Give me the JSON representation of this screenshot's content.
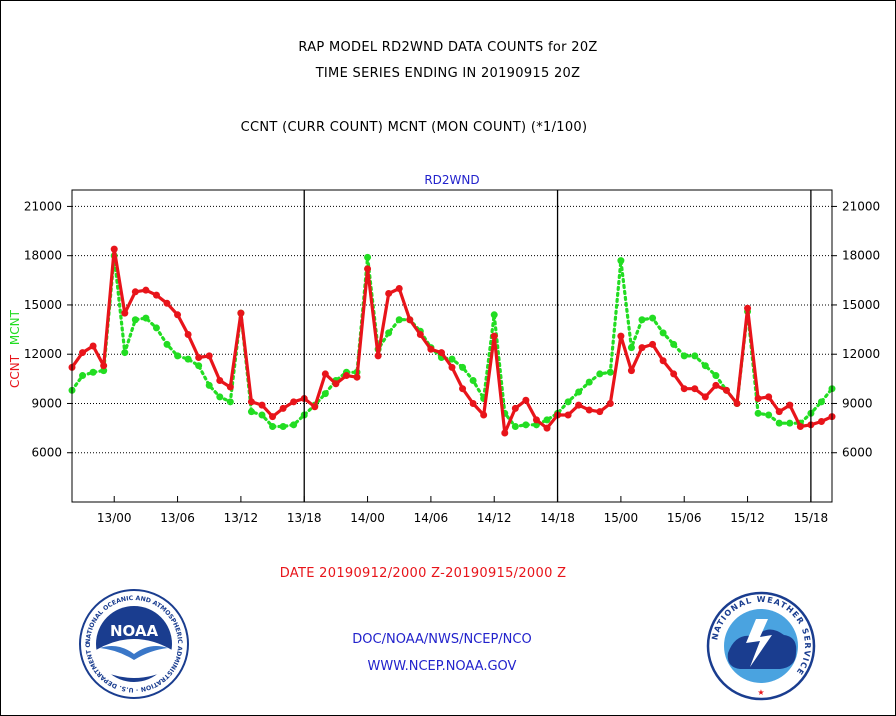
{
  "header": {
    "title_line1": "RAP MODEL RD2WND DATA COUNTS for 20Z",
    "title_line2": "TIME SERIES ENDING IN 20190915 20Z",
    "subtitle": "CCNT (CURR COUNT) MCNT (MON COUNT) (*1/100)"
  },
  "footer": {
    "date_range": "DATE 20190912/2000 Z-20190915/2000 Z",
    "org_path": "DOC/NOAA/NWS/NCEP/NCO",
    "url": "WWW.NCEP.NOAA.GOV"
  },
  "logos": {
    "noaa_center": "NOAA",
    "noaa_ring": "NATIONAL OCEANIC AND ATMOSPHERIC ADMINISTRATION · U.S. DEPARTMENT OF COMMERCE ·",
    "nws_ring": "NATIONAL WEATHER SERVICE"
  },
  "colors": {
    "ccnt": "#e8141a",
    "mcnt": "#22dd22",
    "axis_text": "#000000",
    "panel_title": "#2222cc"
  },
  "chart_data": {
    "type": "line",
    "title": "RD2WND",
    "ylabel_parts": [
      {
        "text": "CCNT",
        "color": "#e8141a"
      },
      {
        "text": "MCNT",
        "color": "#22dd22"
      }
    ],
    "ylim": [
      3000,
      22000
    ],
    "yticks": [
      6000,
      9000,
      12000,
      15000,
      18000,
      21000
    ],
    "ytick_labels": [
      "6000",
      "9000",
      "12000",
      "15000",
      "18000",
      "21000"
    ],
    "xlim": [
      -4,
      68
    ],
    "xticks": [
      0,
      6,
      12,
      18,
      24,
      30,
      36,
      42,
      48,
      54,
      60,
      66
    ],
    "xtick_labels": [
      "13/00",
      "13/06",
      "13/12",
      "13/18",
      "14/00",
      "14/06",
      "14/12",
      "14/18",
      "15/00",
      "15/06",
      "15/12",
      "15/18"
    ],
    "day_dividers": [
      18,
      42,
      66
    ],
    "x": [
      -4,
      -3,
      -2,
      -1,
      0,
      1,
      2,
      3,
      4,
      5,
      6,
      7,
      8,
      9,
      10,
      11,
      12,
      13,
      14,
      15,
      16,
      17,
      18,
      19,
      20,
      21,
      22,
      23,
      24,
      25,
      26,
      27,
      28,
      29,
      30,
      31,
      32,
      33,
      34,
      35,
      36,
      37,
      38,
      39,
      40,
      41,
      42,
      43,
      44,
      45,
      46,
      47,
      48,
      49,
      50,
      51,
      52,
      53,
      54,
      55,
      56,
      57,
      58,
      59,
      60,
      61,
      62,
      63,
      64,
      65,
      66,
      67,
      68
    ],
    "series": [
      {
        "name": "CCNT",
        "style": "solid",
        "values": [
          11200,
          12100,
          12500,
          11300,
          18400,
          14500,
          15800,
          15900,
          15600,
          15100,
          14400,
          13200,
          11800,
          11900,
          10400,
          10000,
          14500,
          9100,
          8900,
          8200,
          8700,
          9100,
          9300,
          8800,
          10800,
          10200,
          10700,
          10600,
          17200,
          11900,
          15700,
          16000,
          14100,
          13200,
          12300,
          12100,
          11200,
          9900,
          9000,
          8300,
          13100,
          7200,
          8700,
          9200,
          8000,
          7500,
          8300,
          8300,
          8900,
          8600,
          8500,
          9000,
          13100,
          11000,
          12400,
          12600,
          11600,
          10800,
          9900,
          9900,
          9400,
          10100,
          9800,
          9000,
          14800,
          9300,
          9400,
          8500,
          8900,
          7600,
          7700,
          7900,
          8200
        ]
      },
      {
        "name": "MCNT",
        "style": "dotted",
        "values": [
          9800,
          10700,
          10900,
          11000,
          18000,
          12100,
          14100,
          14200,
          13600,
          12600,
          11900,
          11700,
          11300,
          10100,
          9400,
          9100,
          14500,
          8500,
          8300,
          7600,
          7600,
          7700,
          8300,
          8900,
          9600,
          10400,
          10900,
          10900,
          17900,
          12300,
          13300,
          14100,
          14100,
          13400,
          12400,
          11800,
          11700,
          11200,
          10400,
          9300,
          14400,
          8400,
          7600,
          7700,
          7700,
          8000,
          8400,
          9100,
          9700,
          10300,
          10800,
          10900,
          17700,
          12400,
          14100,
          14200,
          13300,
          12600,
          11900,
          11900,
          11300,
          10700,
          9800,
          9000,
          14600,
          8400,
          8300,
          7800,
          7800,
          7800,
          8400,
          9100,
          9900
        ]
      }
    ]
  }
}
